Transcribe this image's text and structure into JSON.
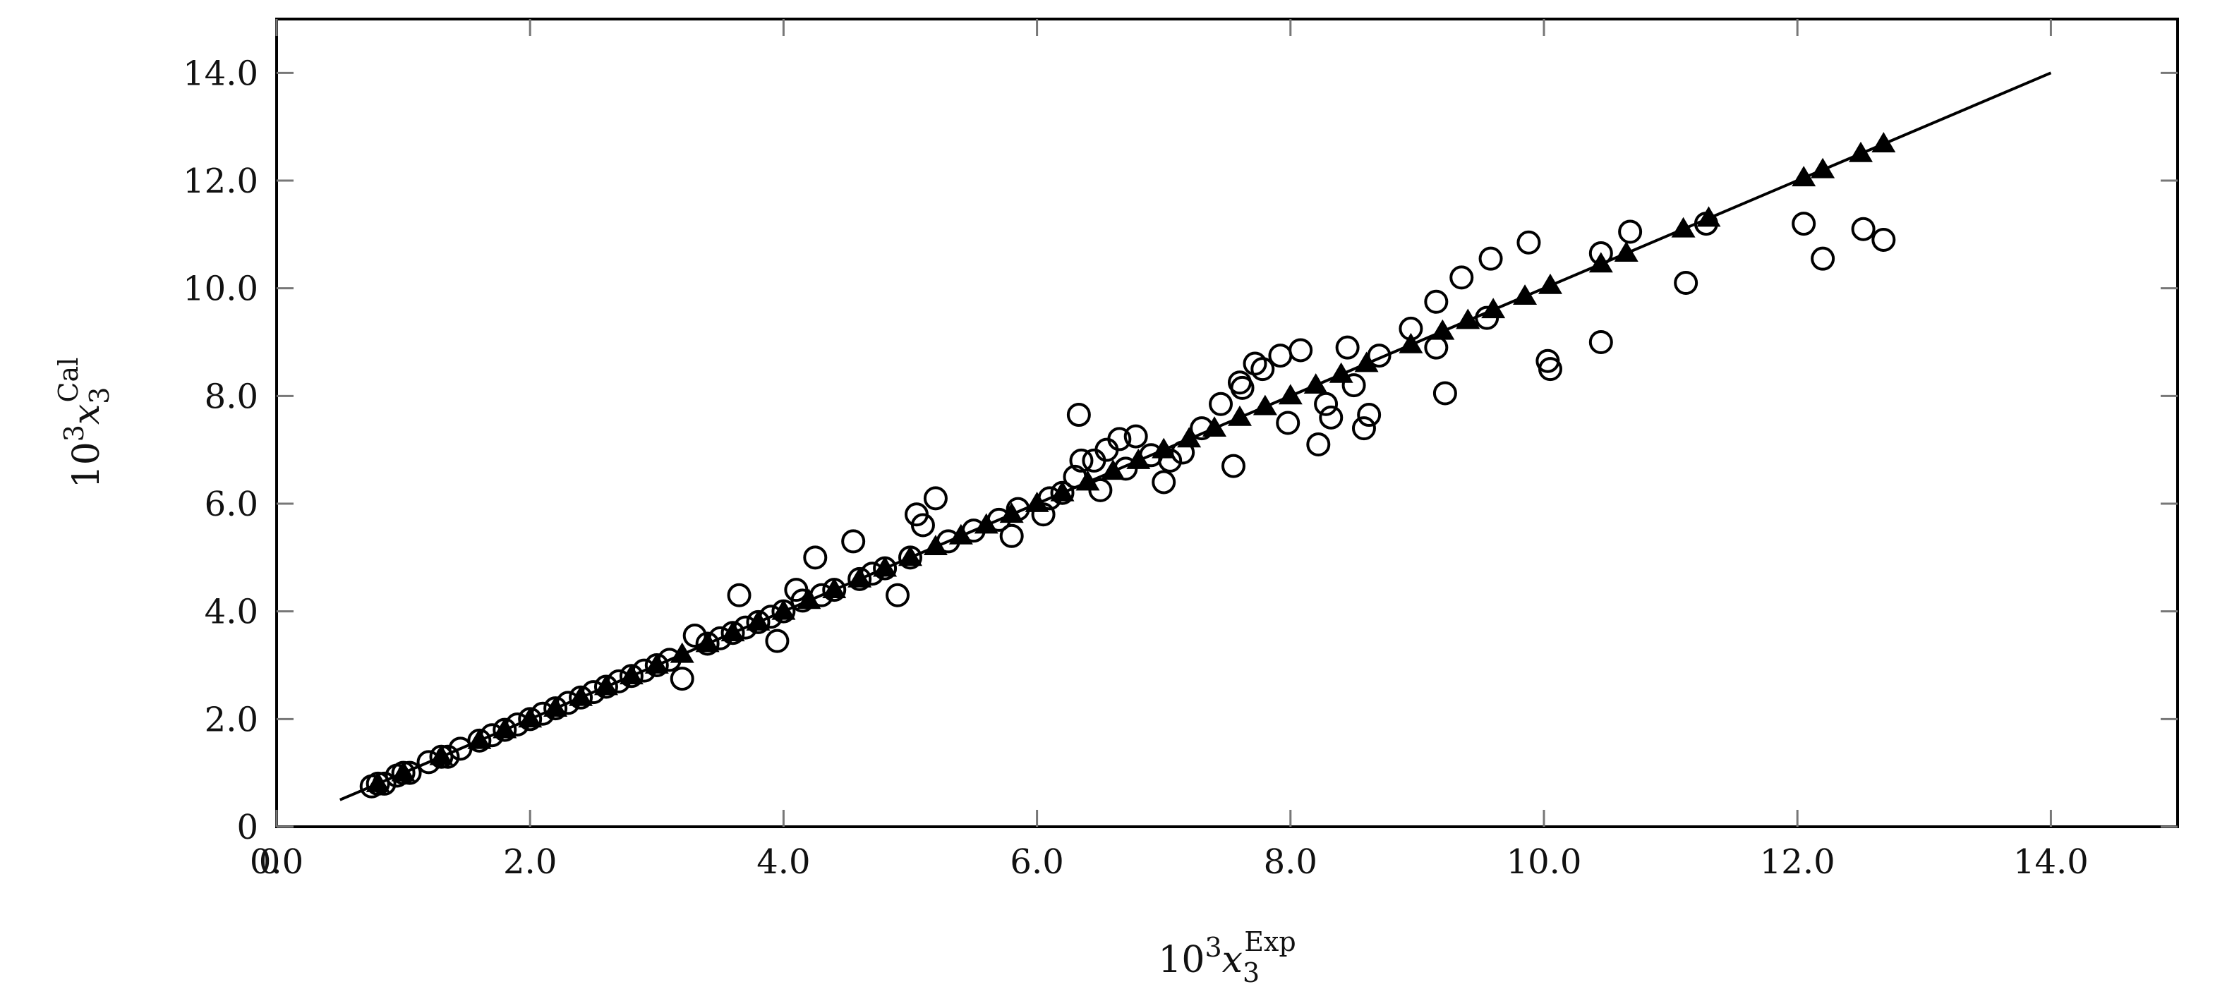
{
  "chart_data": {
    "type": "scatter",
    "xlabel": {
      "base": "10",
      "exp": "3",
      "var": "x",
      "sub": "3",
      "sup": "Exp"
    },
    "ylabel": {
      "base": "10",
      "exp": "3",
      "var": "x",
      "sub": "3",
      "sup": "Cal"
    },
    "xlim": [
      0,
      15
    ],
    "ylim": [
      0,
      15
    ],
    "x_ticks": [
      0,
      2,
      4,
      6,
      8,
      10,
      12,
      14
    ],
    "x_tick_labels": [
      "0.0",
      "2.0",
      "4.0",
      "6.0",
      "8.0",
      "10.0",
      "12.0",
      "14.0"
    ],
    "y_ticks": [
      0,
      2,
      4,
      6,
      8,
      10,
      12,
      14
    ],
    "y_tick_labels": [
      "0",
      "2.0",
      "4.0",
      "6.0",
      "8.0",
      "10.0",
      "12.0",
      "14.0"
    ],
    "x_extra_tick_label": "0",
    "grid": false,
    "reference_line": {
      "x": [
        0.5,
        14.0
      ],
      "y": [
        0.5,
        14.0
      ]
    },
    "series": [
      {
        "marker": "open-circle",
        "points": [
          [
            0.75,
            0.75
          ],
          [
            0.8,
            0.8
          ],
          [
            0.85,
            0.8
          ],
          [
            0.95,
            0.95
          ],
          [
            1.0,
            1.0
          ],
          [
            1.05,
            1.0
          ],
          [
            1.2,
            1.2
          ],
          [
            1.3,
            1.3
          ],
          [
            1.35,
            1.3
          ],
          [
            1.45,
            1.45
          ],
          [
            1.6,
            1.6
          ],
          [
            1.7,
            1.7
          ],
          [
            1.8,
            1.8
          ],
          [
            1.9,
            1.9
          ],
          [
            2.0,
            2.0
          ],
          [
            2.1,
            2.1
          ],
          [
            2.2,
            2.2
          ],
          [
            2.3,
            2.3
          ],
          [
            2.4,
            2.4
          ],
          [
            2.5,
            2.5
          ],
          [
            2.6,
            2.6
          ],
          [
            2.7,
            2.7
          ],
          [
            2.8,
            2.8
          ],
          [
            2.9,
            2.9
          ],
          [
            3.0,
            3.0
          ],
          [
            3.1,
            3.1
          ],
          [
            3.2,
            2.75
          ],
          [
            3.3,
            3.55
          ],
          [
            3.4,
            3.4
          ],
          [
            3.5,
            3.5
          ],
          [
            3.6,
            3.6
          ],
          [
            3.65,
            4.3
          ],
          [
            3.7,
            3.7
          ],
          [
            3.8,
            3.8
          ],
          [
            3.9,
            3.9
          ],
          [
            3.95,
            3.45
          ],
          [
            4.0,
            4.0
          ],
          [
            4.1,
            4.4
          ],
          [
            4.15,
            4.2
          ],
          [
            4.25,
            5.0
          ],
          [
            4.3,
            4.3
          ],
          [
            4.4,
            4.4
          ],
          [
            4.55,
            5.3
          ],
          [
            4.6,
            4.6
          ],
          [
            4.7,
            4.7
          ],
          [
            4.8,
            4.8
          ],
          [
            4.9,
            4.3
          ],
          [
            5.0,
            5.0
          ],
          [
            5.05,
            5.8
          ],
          [
            5.1,
            5.6
          ],
          [
            5.2,
            6.1
          ],
          [
            5.3,
            5.3
          ],
          [
            5.5,
            5.5
          ],
          [
            5.7,
            5.7
          ],
          [
            5.8,
            5.4
          ],
          [
            5.85,
            5.9
          ],
          [
            6.05,
            5.8
          ],
          [
            6.1,
            6.1
          ],
          [
            6.2,
            6.2
          ],
          [
            6.3,
            6.5
          ],
          [
            6.33,
            7.65
          ],
          [
            6.35,
            6.8
          ],
          [
            6.45,
            6.8
          ],
          [
            6.5,
            6.25
          ],
          [
            6.55,
            7.0
          ],
          [
            6.65,
            7.2
          ],
          [
            6.7,
            6.65
          ],
          [
            6.78,
            7.25
          ],
          [
            6.9,
            6.9
          ],
          [
            7.0,
            6.4
          ],
          [
            7.05,
            6.8
          ],
          [
            7.15,
            6.95
          ],
          [
            7.3,
            7.4
          ],
          [
            7.45,
            7.85
          ],
          [
            7.55,
            6.7
          ],
          [
            7.6,
            8.25
          ],
          [
            7.62,
            8.15
          ],
          [
            7.72,
            8.6
          ],
          [
            7.78,
            8.5
          ],
          [
            7.92,
            8.75
          ],
          [
            7.98,
            7.5
          ],
          [
            8.08,
            8.85
          ],
          [
            8.22,
            7.1
          ],
          [
            8.28,
            7.85
          ],
          [
            8.32,
            7.6
          ],
          [
            8.45,
            8.9
          ],
          [
            8.5,
            8.2
          ],
          [
            8.58,
            7.4
          ],
          [
            8.62,
            7.65
          ],
          [
            8.7,
            8.75
          ],
          [
            8.95,
            9.25
          ],
          [
            9.15,
            9.75
          ],
          [
            9.15,
            8.9
          ],
          [
            9.22,
            8.05
          ],
          [
            9.35,
            10.2
          ],
          [
            9.55,
            9.45
          ],
          [
            9.58,
            10.55
          ],
          [
            9.88,
            10.85
          ],
          [
            10.03,
            8.65
          ],
          [
            10.05,
            8.5
          ],
          [
            10.45,
            10.65
          ],
          [
            10.45,
            9.0
          ],
          [
            10.68,
            11.05
          ],
          [
            11.12,
            10.1
          ],
          [
            11.28,
            11.2
          ],
          [
            12.05,
            11.2
          ],
          [
            12.2,
            10.55
          ],
          [
            12.52,
            11.1
          ],
          [
            12.68,
            10.9
          ]
        ]
      },
      {
        "marker": "filled-triangle",
        "points": [
          [
            0.8,
            0.8
          ],
          [
            1.0,
            1.0
          ],
          [
            1.3,
            1.3
          ],
          [
            1.6,
            1.6
          ],
          [
            1.8,
            1.8
          ],
          [
            2.0,
            2.0
          ],
          [
            2.2,
            2.2
          ],
          [
            2.4,
            2.4
          ],
          [
            2.6,
            2.6
          ],
          [
            2.8,
            2.8
          ],
          [
            3.0,
            3.0
          ],
          [
            3.2,
            3.2
          ],
          [
            3.4,
            3.4
          ],
          [
            3.6,
            3.6
          ],
          [
            3.8,
            3.8
          ],
          [
            4.0,
            4.0
          ],
          [
            4.2,
            4.2
          ],
          [
            4.4,
            4.4
          ],
          [
            4.6,
            4.6
          ],
          [
            4.8,
            4.8
          ],
          [
            5.0,
            5.0
          ],
          [
            5.2,
            5.2
          ],
          [
            5.4,
            5.4
          ],
          [
            5.6,
            5.6
          ],
          [
            5.8,
            5.8
          ],
          [
            6.0,
            6.0
          ],
          [
            6.2,
            6.2
          ],
          [
            6.4,
            6.4
          ],
          [
            6.6,
            6.6
          ],
          [
            6.8,
            6.8
          ],
          [
            7.0,
            7.0
          ],
          [
            7.2,
            7.2
          ],
          [
            7.4,
            7.4
          ],
          [
            7.6,
            7.6
          ],
          [
            7.8,
            7.8
          ],
          [
            8.0,
            8.0
          ],
          [
            8.2,
            8.2
          ],
          [
            8.4,
            8.4
          ],
          [
            8.6,
            8.6
          ],
          [
            8.95,
            8.95
          ],
          [
            9.2,
            9.2
          ],
          [
            9.4,
            9.4
          ],
          [
            9.6,
            9.6
          ],
          [
            9.85,
            9.85
          ],
          [
            10.05,
            10.05
          ],
          [
            10.45,
            10.45
          ],
          [
            10.65,
            10.65
          ],
          [
            11.1,
            11.1
          ],
          [
            11.3,
            11.3
          ],
          [
            12.05,
            12.05
          ],
          [
            12.2,
            12.2
          ],
          [
            12.5,
            12.5
          ],
          [
            12.68,
            12.68
          ]
        ]
      }
    ]
  }
}
